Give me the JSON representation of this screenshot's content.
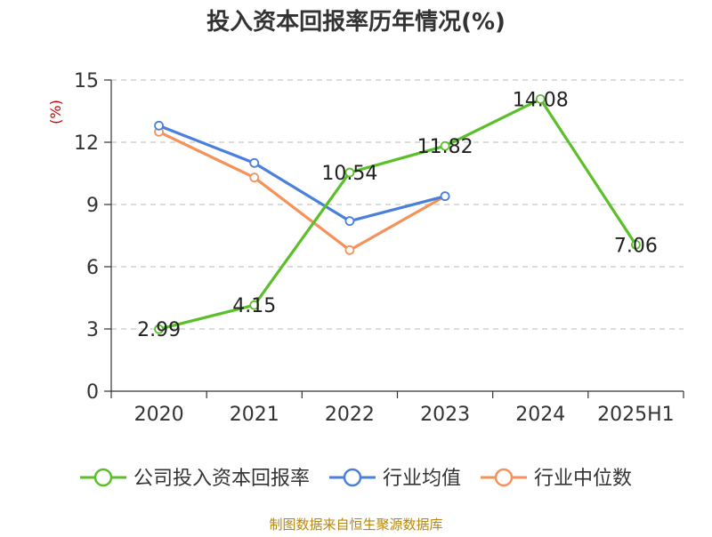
{
  "chart_data": {
    "type": "line",
    "title": "投入资本回报率历年情况(%)",
    "ylabel": "(%)",
    "xlabel": "",
    "categories": [
      "2020",
      "2021",
      "2022",
      "2023",
      "2024",
      "2025H1"
    ],
    "ylim": [
      0,
      15
    ],
    "yticks": [
      0,
      3,
      6,
      9,
      12,
      15
    ],
    "grid": true,
    "legend_position": "bottom",
    "series": [
      {
        "name": "公司投入资本回报率",
        "color": "#5bbf2a",
        "values": [
          2.99,
          4.15,
          10.54,
          11.82,
          14.08,
          7.06
        ],
        "labels": [
          "2.99",
          "4.15",
          "10.54",
          "11.82",
          "14.08",
          "7.06"
        ],
        "show_labels": true
      },
      {
        "name": "行业均值",
        "color": "#4a7fdc",
        "values": [
          12.8,
          11.0,
          8.2,
          9.4,
          null,
          null
        ],
        "show_labels": false
      },
      {
        "name": "行业中位数",
        "color": "#f5925a",
        "values": [
          12.5,
          10.3,
          6.8,
          9.4,
          null,
          null
        ],
        "show_labels": false
      }
    ],
    "source": "制图数据来自恒生聚源数据库"
  }
}
